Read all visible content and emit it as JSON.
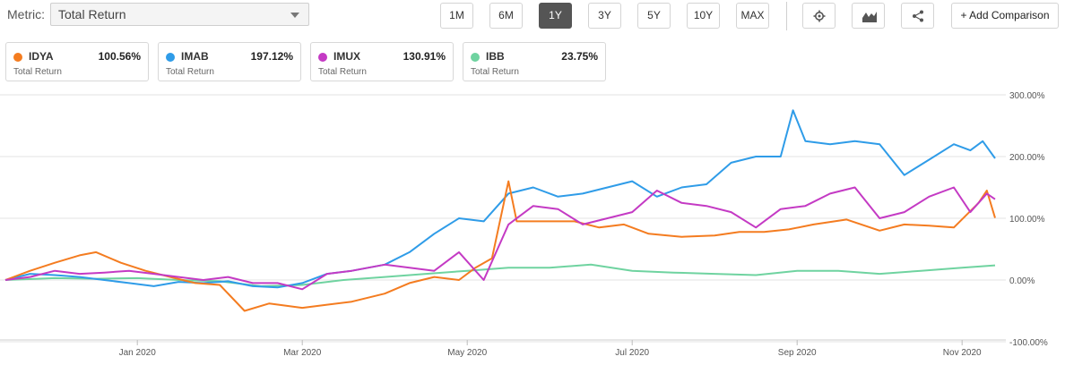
{
  "toolbar": {
    "metric_label": "Metric:",
    "metric_value": "Total Return",
    "ranges": [
      "1M",
      "6M",
      "1Y",
      "3Y",
      "5Y",
      "10Y",
      "MAX"
    ],
    "active_range": "1Y",
    "icons": [
      "gear-icon",
      "area-chart-icon",
      "share-icon"
    ],
    "add_comparison": "+ Add Comparison"
  },
  "legend": [
    {
      "symbol": "IDYA",
      "value": "100.56%",
      "sub": "Total Return",
      "color": "#f47c20"
    },
    {
      "symbol": "IMAB",
      "value": "197.12%",
      "sub": "Total Return",
      "color": "#2f9ce8"
    },
    {
      "symbol": "IMUX",
      "value": "130.91%",
      "sub": "Total Return",
      "color": "#c43ac4"
    },
    {
      "symbol": "IBB",
      "value": "23.75%",
      "sub": "Total Return",
      "color": "#6fd3a0"
    }
  ],
  "chart_data": {
    "type": "line",
    "x_unit": "month (fractional, 2019-11 to 2020-11)",
    "x_ticks": [
      {
        "x": 2,
        "label": "Jan 2020"
      },
      {
        "x": 4,
        "label": "Mar 2020"
      },
      {
        "x": 6,
        "label": "May 2020"
      },
      {
        "x": 8,
        "label": "Jul 2020"
      },
      {
        "x": 10,
        "label": "Sep 2020"
      },
      {
        "x": 12,
        "label": "Nov 2020"
      }
    ],
    "xlim": [
      0.4,
      12.4
    ],
    "y_ticks": [
      {
        "y": 300,
        "label": "300.00%"
      },
      {
        "y": 200,
        "label": "200.00%"
      },
      {
        "y": 100,
        "label": "100.00%"
      },
      {
        "y": 0,
        "label": "0.00%"
      },
      {
        "y": -100,
        "label": "-100.00%"
      }
    ],
    "ylim": [
      -100,
      300
    ],
    "grid": true,
    "series": [
      {
        "name": "IDYA",
        "color": "#f47c20",
        "points": [
          [
            0.4,
            0
          ],
          [
            0.7,
            15
          ],
          [
            1.0,
            28
          ],
          [
            1.3,
            40
          ],
          [
            1.5,
            45
          ],
          [
            1.8,
            28
          ],
          [
            2.1,
            15
          ],
          [
            2.4,
            5
          ],
          [
            2.7,
            -5
          ],
          [
            3.0,
            -8
          ],
          [
            3.3,
            -50
          ],
          [
            3.6,
            -38
          ],
          [
            4.0,
            -45
          ],
          [
            4.3,
            -40
          ],
          [
            4.6,
            -35
          ],
          [
            5.0,
            -22
          ],
          [
            5.3,
            -5
          ],
          [
            5.6,
            5
          ],
          [
            5.9,
            0
          ],
          [
            6.1,
            20
          ],
          [
            6.3,
            35
          ],
          [
            6.5,
            160
          ],
          [
            6.6,
            95
          ],
          [
            7.0,
            95
          ],
          [
            7.3,
            95
          ],
          [
            7.6,
            85
          ],
          [
            7.9,
            90
          ],
          [
            8.2,
            75
          ],
          [
            8.6,
            70
          ],
          [
            9.0,
            72
          ],
          [
            9.3,
            78
          ],
          [
            9.6,
            78
          ],
          [
            9.9,
            82
          ],
          [
            10.2,
            90
          ],
          [
            10.6,
            98
          ],
          [
            11.0,
            80
          ],
          [
            11.3,
            90
          ],
          [
            11.6,
            88
          ],
          [
            11.9,
            85
          ],
          [
            12.2,
            125
          ],
          [
            12.3,
            145
          ],
          [
            12.4,
            100.56
          ]
        ]
      },
      {
        "name": "IMAB",
        "color": "#2f9ce8",
        "points": [
          [
            0.4,
            0
          ],
          [
            0.7,
            10
          ],
          [
            1.0,
            8
          ],
          [
            1.3,
            5
          ],
          [
            1.6,
            0
          ],
          [
            1.9,
            -5
          ],
          [
            2.2,
            -10
          ],
          [
            2.5,
            -3
          ],
          [
            2.8,
            -5
          ],
          [
            3.1,
            -2
          ],
          [
            3.4,
            -10
          ],
          [
            3.7,
            -12
          ],
          [
            4.0,
            -5
          ],
          [
            4.3,
            10
          ],
          [
            4.6,
            15
          ],
          [
            5.0,
            25
          ],
          [
            5.3,
            45
          ],
          [
            5.6,
            75
          ],
          [
            5.9,
            100
          ],
          [
            6.2,
            95
          ],
          [
            6.5,
            140
          ],
          [
            6.8,
            150
          ],
          [
            7.1,
            135
          ],
          [
            7.4,
            140
          ],
          [
            7.7,
            150
          ],
          [
            8.0,
            160
          ],
          [
            8.3,
            135
          ],
          [
            8.6,
            150
          ],
          [
            8.9,
            155
          ],
          [
            9.2,
            190
          ],
          [
            9.5,
            200
          ],
          [
            9.8,
            200
          ],
          [
            9.95,
            275
          ],
          [
            10.1,
            225
          ],
          [
            10.4,
            220
          ],
          [
            10.7,
            225
          ],
          [
            11.0,
            220
          ],
          [
            11.3,
            170
          ],
          [
            11.6,
            195
          ],
          [
            11.9,
            220
          ],
          [
            12.1,
            210
          ],
          [
            12.25,
            225
          ],
          [
            12.4,
            197.12
          ]
        ]
      },
      {
        "name": "IMUX",
        "color": "#c43ac4",
        "points": [
          [
            0.4,
            0
          ],
          [
            0.7,
            5
          ],
          [
            1.0,
            15
          ],
          [
            1.3,
            10
          ],
          [
            1.6,
            12
          ],
          [
            1.9,
            15
          ],
          [
            2.2,
            10
          ],
          [
            2.5,
            5
          ],
          [
            2.8,
            0
          ],
          [
            3.1,
            5
          ],
          [
            3.4,
            -5
          ],
          [
            3.7,
            -5
          ],
          [
            4.0,
            -15
          ],
          [
            4.3,
            10
          ],
          [
            4.6,
            15
          ],
          [
            5.0,
            25
          ],
          [
            5.3,
            20
          ],
          [
            5.6,
            15
          ],
          [
            5.9,
            45
          ],
          [
            6.2,
            0
          ],
          [
            6.5,
            90
          ],
          [
            6.8,
            120
          ],
          [
            7.1,
            115
          ],
          [
            7.4,
            90
          ],
          [
            7.7,
            100
          ],
          [
            8.0,
            110
          ],
          [
            8.3,
            145
          ],
          [
            8.6,
            125
          ],
          [
            8.9,
            120
          ],
          [
            9.2,
            110
          ],
          [
            9.5,
            85
          ],
          [
            9.8,
            115
          ],
          [
            10.1,
            120
          ],
          [
            10.4,
            140
          ],
          [
            10.7,
            150
          ],
          [
            11.0,
            100
          ],
          [
            11.3,
            110
          ],
          [
            11.6,
            135
          ],
          [
            11.9,
            150
          ],
          [
            12.1,
            110
          ],
          [
            12.3,
            140
          ],
          [
            12.4,
            130.91
          ]
        ]
      },
      {
        "name": "IBB",
        "color": "#6fd3a0",
        "points": [
          [
            0.4,
            0
          ],
          [
            1.0,
            3
          ],
          [
            1.5,
            2
          ],
          [
            2.0,
            3
          ],
          [
            2.5,
            0
          ],
          [
            3.0,
            -2
          ],
          [
            3.5,
            -10
          ],
          [
            4.0,
            -8
          ],
          [
            4.5,
            0
          ],
          [
            5.0,
            5
          ],
          [
            5.5,
            10
          ],
          [
            6.0,
            15
          ],
          [
            6.5,
            20
          ],
          [
            7.0,
            20
          ],
          [
            7.5,
            25
          ],
          [
            8.0,
            15
          ],
          [
            8.5,
            12
          ],
          [
            9.0,
            10
          ],
          [
            9.5,
            8
          ],
          [
            10.0,
            15
          ],
          [
            10.5,
            15
          ],
          [
            11.0,
            10
          ],
          [
            11.5,
            15
          ],
          [
            12.0,
            20
          ],
          [
            12.4,
            23.75
          ]
        ]
      }
    ]
  }
}
